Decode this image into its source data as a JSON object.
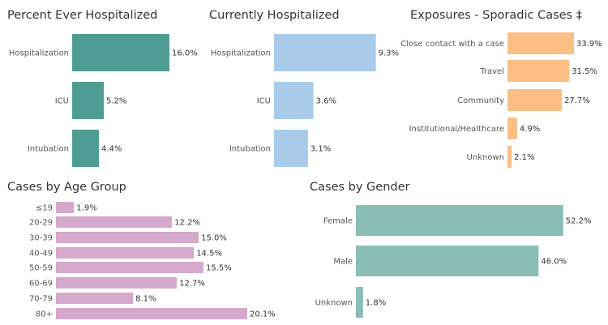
{
  "colors": {
    "teal_dark": "#4f9c94",
    "light_blue": "#a9cbea",
    "orange": "#fbbf86",
    "pink": "#d5a9cb",
    "teal_light": "#8bbdb7"
  },
  "chart_data": [
    {
      "id": "ever",
      "type": "bar",
      "orientation": "horizontal",
      "title": "Percent Ever Hospitalized",
      "categories": [
        "Hospitalization",
        "ICU",
        "Intubation"
      ],
      "values": [
        16.0,
        5.2,
        4.4
      ],
      "labels": [
        "16.0%",
        "5.2%",
        "4.4%"
      ],
      "color": "#4f9c94"
    },
    {
      "id": "current",
      "type": "bar",
      "orientation": "horizontal",
      "title": "Currently Hospitalized",
      "categories": [
        "Hospitalization",
        "ICU",
        "Intubation"
      ],
      "values": [
        9.3,
        3.6,
        3.1
      ],
      "labels": [
        "9.3%",
        "3.6%",
        "3.1%"
      ],
      "color": "#a9cbea"
    },
    {
      "id": "exposures",
      "type": "bar",
      "orientation": "horizontal",
      "title": "Exposures - Sporadic Cases ‡",
      "categories": [
        "Close contact with a case",
        "Travel",
        "Community",
        "Institutional/Healthcare",
        "Unknown"
      ],
      "values": [
        33.9,
        31.5,
        27.7,
        4.9,
        2.1
      ],
      "labels": [
        "33.9%",
        "31.5%",
        "27.7%",
        "4.9%",
        "2.1%"
      ],
      "color": "#fbbf86"
    },
    {
      "id": "age",
      "type": "bar",
      "orientation": "horizontal",
      "title": "Cases by Age Group",
      "categories": [
        "≤19",
        "20-29",
        "30-39",
        "40-49",
        "50-59",
        "60-69",
        "70-79",
        "80+"
      ],
      "values": [
        1.9,
        12.2,
        15.0,
        14.5,
        15.5,
        12.7,
        8.1,
        20.1
      ],
      "labels": [
        "1.9%",
        "12.2%",
        "15.0%",
        "14.5%",
        "15.5%",
        "12.7%",
        "8.1%",
        "20.1%"
      ],
      "color": "#d5a9cb"
    },
    {
      "id": "gender",
      "type": "bar",
      "orientation": "horizontal",
      "title": "Cases by Gender",
      "categories": [
        "Female",
        "Male",
        "Unknown"
      ],
      "values": [
        52.2,
        46.0,
        1.8
      ],
      "labels": [
        "52.2%",
        "46.0%",
        "1.8%"
      ],
      "color": "#8bbdb7"
    }
  ]
}
